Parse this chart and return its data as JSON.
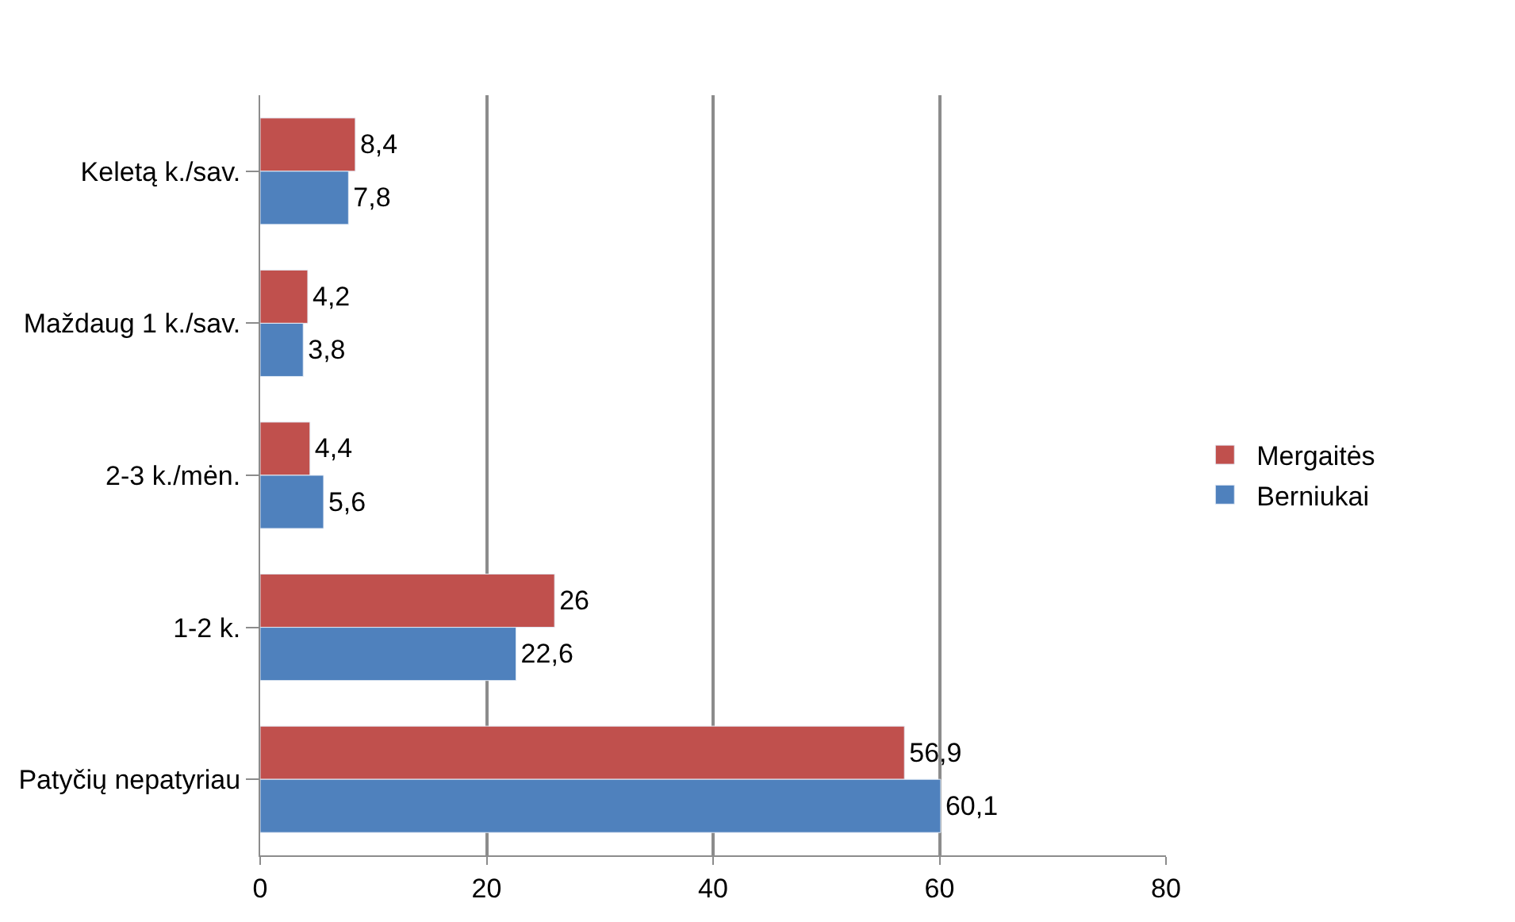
{
  "chart_data": {
    "type": "bar",
    "orientation": "horizontal",
    "categories": [
      "Keletą k./sav.",
      "Maždaug 1 k./sav.",
      "2-3 k./mėn.",
      "1-2 k.",
      "Patyčių nepatyriau"
    ],
    "series": [
      {
        "name": "Mergaitės",
        "color": "#c0504d",
        "values": [
          8.4,
          4.2,
          4.4,
          26,
          56.9
        ],
        "value_labels": [
          "8,4",
          "4,2",
          "4,4",
          "26",
          "56,9"
        ]
      },
      {
        "name": "Berniukai",
        "color": "#4f81bd",
        "values": [
          7.8,
          3.8,
          5.6,
          22.6,
          60.1
        ],
        "value_labels": [
          "7,8",
          "3,8",
          "5,6",
          "22,6",
          "60,1"
        ]
      }
    ],
    "xlim": [
      0,
      80
    ],
    "xticks": [
      0,
      20,
      40,
      60,
      80
    ],
    "grid": "x",
    "legend": "right"
  }
}
